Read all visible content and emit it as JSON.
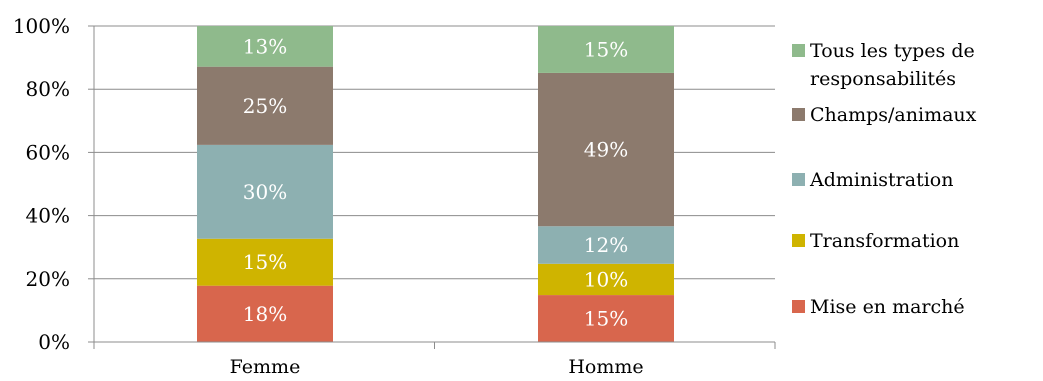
{
  "chart_data": {
    "type": "bar",
    "stacked": true,
    "categories": [
      "Femme",
      "Homme"
    ],
    "series": [
      {
        "name": "Mise en marché",
        "values": [
          18,
          15
        ],
        "labels": [
          "18%",
          "15%"
        ],
        "color": "#d8664d"
      },
      {
        "name": "Transformation",
        "values": [
          15,
          10
        ],
        "labels": [
          "15%",
          "10%"
        ],
        "color": "#cfb400"
      },
      {
        "name": "Administration",
        "values": [
          30,
          12
        ],
        "labels": [
          "30%",
          "12%"
        ],
        "color": "#8db0b1"
      },
      {
        "name": "Champs/animaux",
        "values": [
          25,
          49
        ],
        "labels": [
          "25%",
          "49%"
        ],
        "color": "#8c7a6d"
      },
      {
        "name": "Tous les types de responsabilités",
        "values": [
          13,
          15
        ],
        "labels": [
          "13%",
          "15%"
        ],
        "color": "#8fba8c"
      }
    ],
    "legend_lines": [
      [
        "Mise en marché"
      ],
      [
        "Transformation"
      ],
      [
        "Administration"
      ],
      [
        "Champs/animaux"
      ],
      [
        "Tous les types de",
        "responsabilités"
      ]
    ],
    "yticks": [
      "0%",
      "20%",
      "40%",
      "60%",
      "80%",
      "100%"
    ],
    "ylim": [
      0,
      100
    ],
    "grid": true,
    "legend_position": "right",
    "title": "",
    "xlabel": "",
    "ylabel": ""
  }
}
